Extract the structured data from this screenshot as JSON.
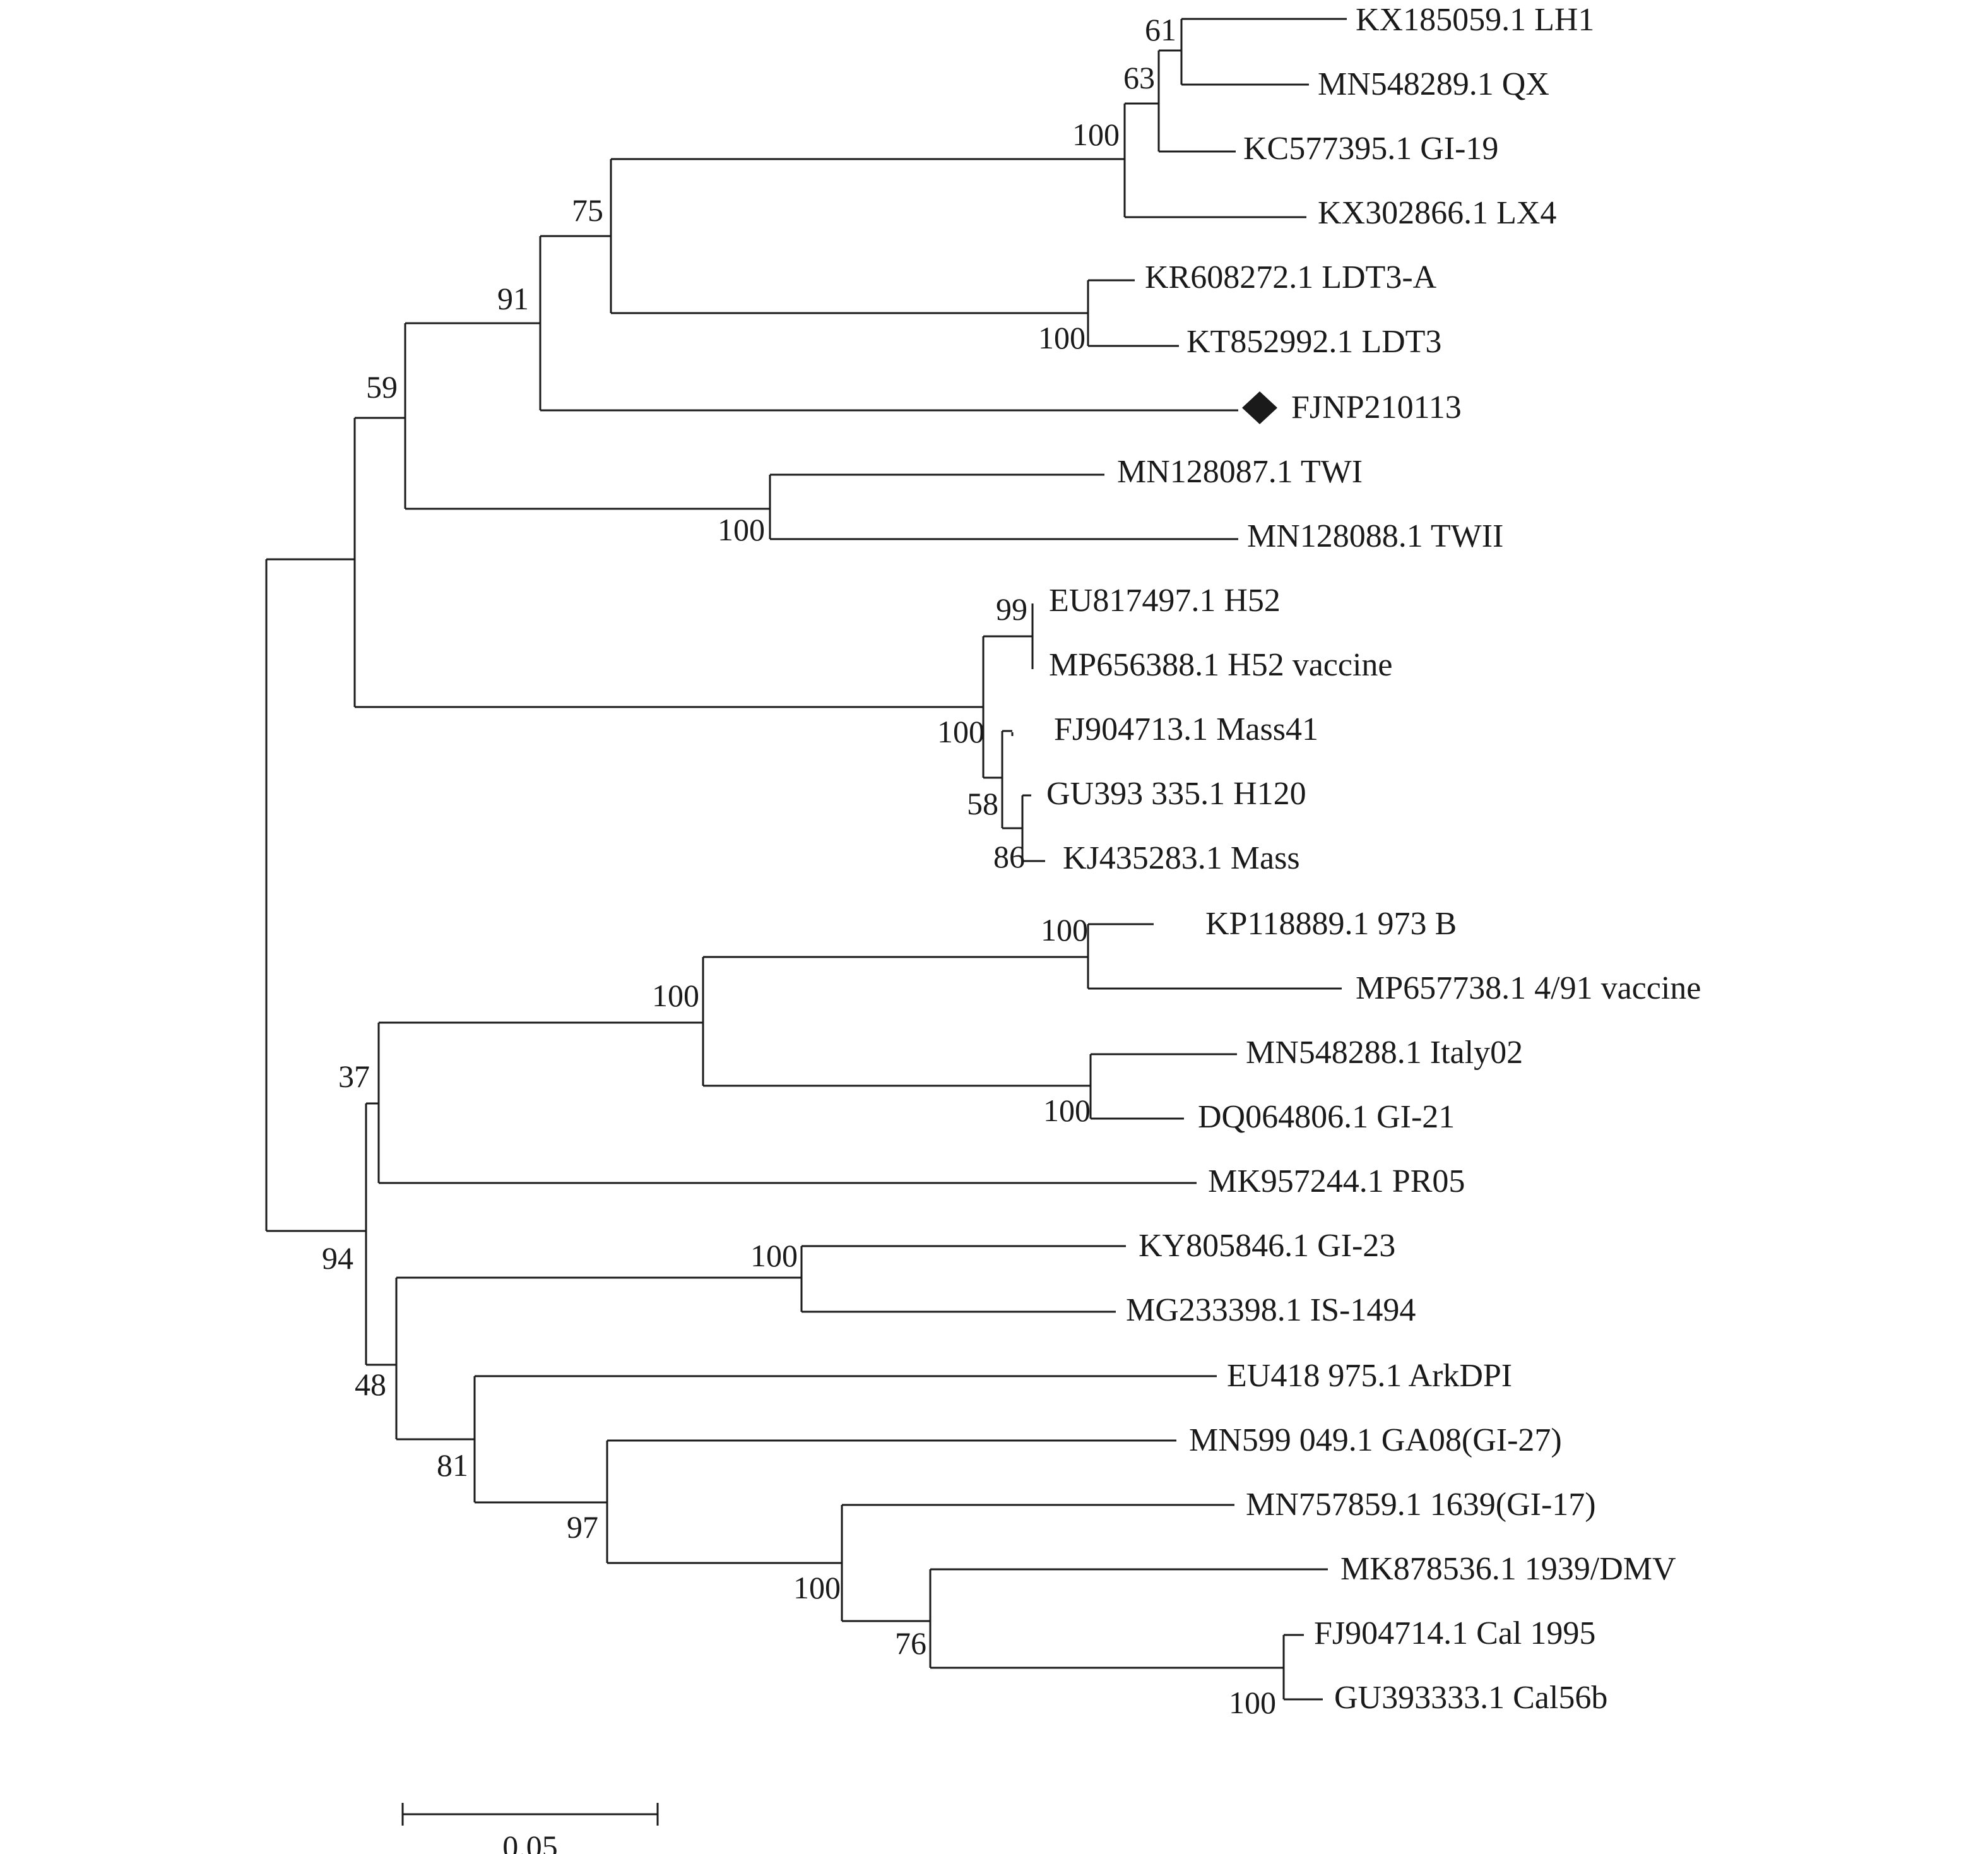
{
  "tree": {
    "taxa": [
      "KX185059.1 LH1",
      "MN548289.1 QX",
      "KC577395.1 GI-19",
      "KX302866.1 LX4",
      "KR608272.1 LDT3-A",
      "KT852992.1 LDT3",
      "FJNP210113",
      "MN128087.1 TWI",
      "MN128088.1 TWII",
      "EU817497.1 H52",
      "MP656388.1 H52 vaccine",
      "FJ904713.1 Mass41",
      "GU393 335.1 H120",
      "KJ435283.1 Mass",
      "KP118889.1 973 B",
      "MP657738.1 4/91 vaccine",
      "MN548288.1 Italy02",
      "DQ064806.1 GI-21",
      "MK957244.1 PR05",
      "KY805846.1 GI-23",
      "MG233398.1 IS-1494",
      "EU418 975.1 ArkDPI",
      "MN599 049.1 GA08(GI-27)",
      "MN757859.1 1639(GI-17)",
      "MK878536.1 1939/DMV",
      "FJ904714.1 Cal 1995",
      "GU393333.1 Cal56b"
    ],
    "highlighted_taxon": "FJNP210113",
    "highlight_marker": "diamond-icon",
    "bootstrap_values": [
      "61",
      "63",
      "100",
      "75",
      "100",
      "91",
      "100",
      "59",
      "99",
      "100",
      "58",
      "86",
      "100",
      "100",
      "100",
      "37",
      "100",
      "94",
      "48",
      "81",
      "97",
      "100",
      "76",
      "100"
    ],
    "scale_bar": {
      "value": 0.05,
      "label": "0.05"
    },
    "line_color": "#1a1a1a"
  }
}
